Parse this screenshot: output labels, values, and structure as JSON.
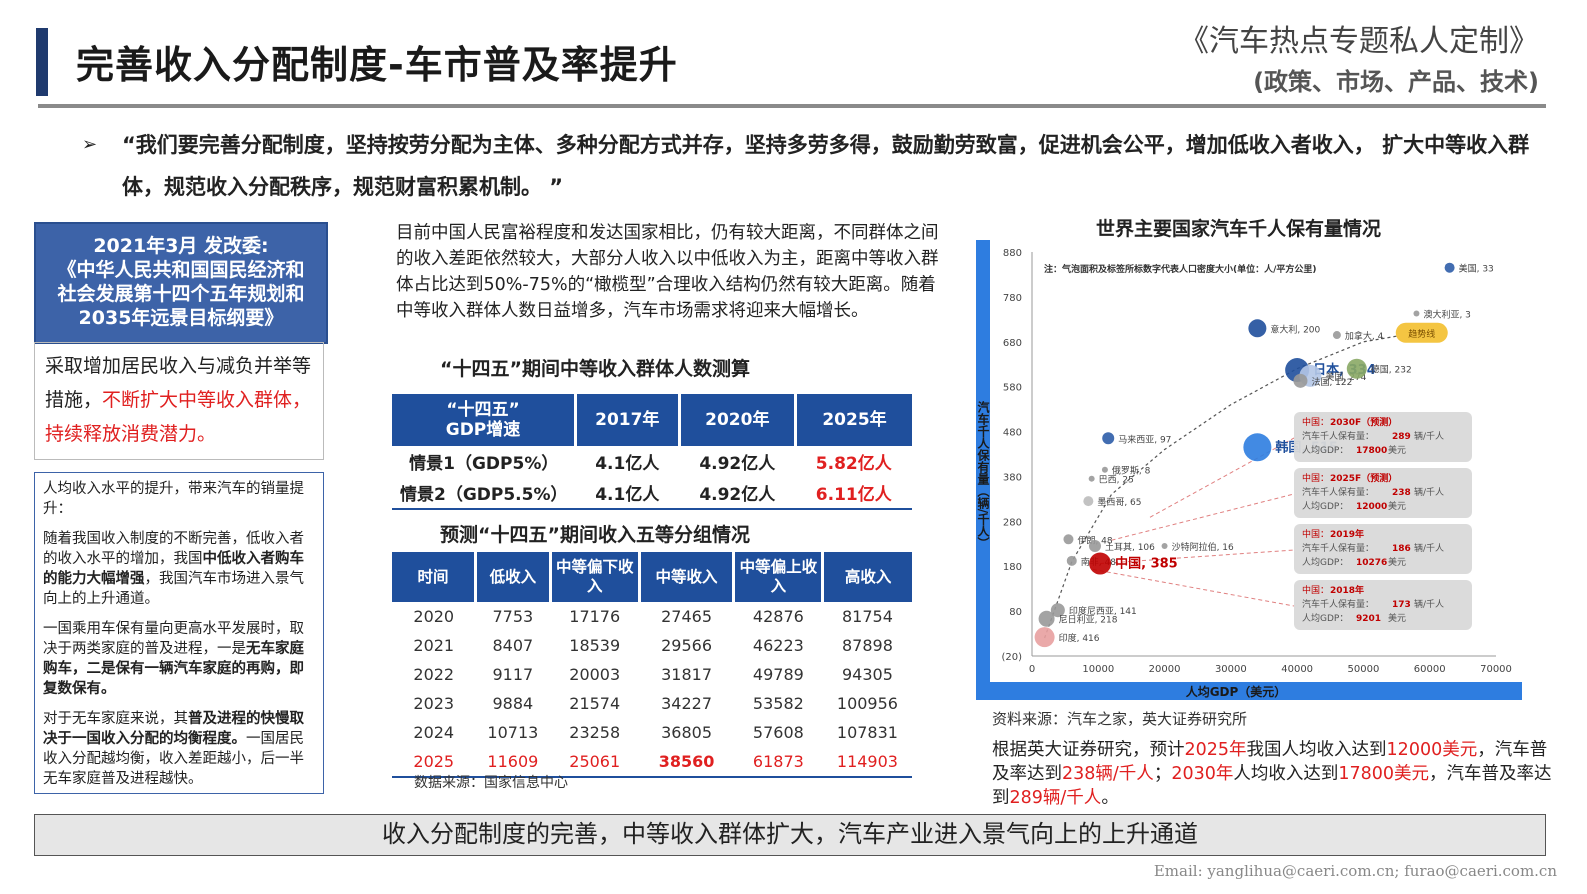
{
  "header": {
    "title": "完善收入分配制度-车市普及率提升",
    "brand_line1": "《汽车热点专题私人定制》",
    "brand_line2": "(政策、市场、产品、技术)"
  },
  "quote": {
    "bullet": "➢",
    "text": "“我们要完善分配制度，坚持按劳分配为主体、多种分配方式并存，坚持多劳多得，鼓励勤劳致富，促进机会公平，增加低收入者收入， 扩大中等收入群体，规范收入分配秩序，规范财富积累机制。 ”"
  },
  "left": {
    "plan_box": {
      "line1": "2021年3月  发改委:",
      "line2": "《中华人民共和国国民经济和",
      "line3": "社会发展第十四个五年规划和",
      "line4": "2035年远景目标纲要》"
    },
    "measures": {
      "text_normal": "采取增加居民收入与减负并举等措施，",
      "text_red": "不断扩大中等收入群体，持续释放消费潜力。"
    },
    "income_box": {
      "p1": "人均收入水平的提升，带来汽车的销量提升：",
      "p2_a": "随着我国收入制度的不断完善，低收入者的收入水平的增加，我国",
      "p2_b": "中低收入者购车的能力大幅增强",
      "p2_c": "，我国汽车市场进入景气向上的上升通道。",
      "p3_a": "一国乘用车保有量向更高水平发展时，取决于两类家庭的普及进程，一是",
      "p3_b": "无车家庭购车，二是保有一辆汽车家庭的再购，即复数保有。",
      "p4_a": "对于无车家庭来说，其",
      "p4_b": "普及进程的快慢取决于一国收入分配的均衡程度。",
      "p4_c": "一国居民收入分配越均衡，收入差距越小，后一半无车家庭普及进程越快。"
    }
  },
  "middle": {
    "desc": "目前中国人民富裕程度和发达国家相比，仍有较大距离，不同群体之间的收入差距依然较大，大部分人收入以中低收入为主，距离中等收入群体占比达到50%-75%的“橄榄型”合理收入结构仍然有较大距离。随着中等收入群体人数日益增多，汽车市场需求将迎来大幅增长。",
    "table1": {
      "title": "“十四五”期间中等收入群体人数测算",
      "headers": [
        "“十四五”\nGDP增速",
        "2017年",
        "2020年",
        "2025年"
      ],
      "rows": [
        [
          "情景1（GDP5%）",
          "4.1亿人",
          "4.92亿人",
          "5.82亿人"
        ],
        [
          "情景2（GDP5.5%）",
          "4.1亿人",
          "4.92亿人",
          "6.11亿人"
        ]
      ]
    },
    "table2": {
      "title": "预测“十四五”期间收入五等分组情况",
      "headers": [
        "时间",
        "低收入",
        "中等偏下收入",
        "中等收入",
        "中等偏上收入",
        "高收入"
      ],
      "rows": [
        [
          "2020",
          "7753",
          "17176",
          "27465",
          "42876",
          "81754"
        ],
        [
          "2021",
          "8407",
          "18539",
          "29566",
          "46223",
          "87898"
        ],
        [
          "2022",
          "9117",
          "20003",
          "31817",
          "49789",
          "94305"
        ],
        [
          "2023",
          "9884",
          "21574",
          "34227",
          "53582",
          "100956"
        ],
        [
          "2024",
          "10713",
          "23258",
          "36805",
          "57608",
          "107831"
        ],
        [
          "2025",
          "11609",
          "25061",
          "38560",
          "61873",
          "114903"
        ]
      ]
    },
    "source": "数据来源：国家信息中心"
  },
  "chart_data": {
    "type": "scatter",
    "title": "世界主要国家汽车千人保有量情况",
    "xlabel": "人均GDP（美元）",
    "ylabel": "汽车千人保有量（辆/千人）",
    "note": "注：气泡面积及标签所标数字代表人口密度大小(单位：人/平方公里)",
    "xlim": [
      0,
      70000
    ],
    "ylim": [
      -20,
      880
    ],
    "xticks": [
      "0",
      "10000",
      "20000",
      "30000",
      "40000",
      "50000",
      "60000",
      "70000"
    ],
    "yticks": [
      "(20)",
      "80",
      "180",
      "280",
      "380",
      "480",
      "580",
      "680",
      "780",
      "880"
    ],
    "points": [
      {
        "label": "美国, 33",
        "x": 63000,
        "y": 845,
        "size": 5,
        "color": "#2e5da8"
      },
      {
        "label": "澳大利亚, 3",
        "x": 58000,
        "y": 743,
        "size": 3,
        "color": "#999999"
      },
      {
        "label": "加拿大, 4",
        "x": 46000,
        "y": 695,
        "size": 4,
        "color": "#999999"
      },
      {
        "label": "意大利, 200",
        "x": 34000,
        "y": 710,
        "size": 9,
        "color": "#1f4f9c"
      },
      {
        "label": "日本, 334",
        "x": 40000,
        "y": 617,
        "size": 12,
        "color": "#1f4f9c"
      },
      {
        "label": "美国, 274",
        "x": 42000,
        "y": 604,
        "size": 11,
        "color": "#b4c7e7"
      },
      {
        "label": "德国, 232",
        "x": 49000,
        "y": 620,
        "size": 10,
        "color": "#8aa865"
      },
      {
        "label": "法国, 122",
        "x": 40500,
        "y": 593,
        "size": 7,
        "color": "#999999"
      },
      {
        "label": "韩国, 515",
        "x": 34000,
        "y": 445,
        "size": 14,
        "color": "#2e7de0"
      },
      {
        "label": "马来西亚, 97",
        "x": 11500,
        "y": 465,
        "size": 6,
        "color": "#2e5da8"
      },
      {
        "label": "俄罗斯, 8",
        "x": 11000,
        "y": 395,
        "size": 3,
        "color": "#999999"
      },
      {
        "label": "巴西, 25",
        "x": 9000,
        "y": 375,
        "size": 3,
        "color": "#999999"
      },
      {
        "label": "墨西哥, 65",
        "x": 8500,
        "y": 325,
        "size": 5,
        "color": "#bbbbbb"
      },
      {
        "label": "伊朗, 48",
        "x": 5500,
        "y": 240,
        "size": 5,
        "color": "#999999"
      },
      {
        "label": "土耳其, 106",
        "x": 9500,
        "y": 225,
        "size": 6,
        "color": "#999999"
      },
      {
        "label": "沙特阿拉伯, 16",
        "x": 20000,
        "y": 225,
        "size": 3,
        "color": "#999999"
      },
      {
        "label": "南非, 48",
        "x": 6000,
        "y": 192,
        "size": 5,
        "color": "#999999"
      },
      {
        "label": "中国, 385",
        "x": 10276,
        "y": 186,
        "size": 11,
        "color": "#c00000"
      },
      {
        "label": "印度尼西亚, 141",
        "x": 3900,
        "y": 82,
        "size": 7,
        "color": "#999999"
      },
      {
        "label": "尼日利亚, 218",
        "x": 2200,
        "y": 63,
        "size": 8,
        "color": "#999999"
      },
      {
        "label": "印度, 416",
        "x": 1900,
        "y": 22,
        "size": 10,
        "color": "#e8a0a0"
      }
    ],
    "highlight": {
      "label": "趋势线",
      "x": 58500,
      "y": 700
    },
    "china_callouts": [
      {
        "year": "2030F（预测）",
        "ownership": "289",
        "gdp": "17800",
        "x": 17800,
        "y": 289
      },
      {
        "year": "2025F（预测）",
        "ownership": "238",
        "gdp": "12000",
        "x": 12000,
        "y": 238
      },
      {
        "year": "2019年",
        "ownership": "186",
        "gdp": "10276",
        "x": 10276,
        "y": 186
      },
      {
        "year": "2018年",
        "ownership": "173",
        "gdp": "9201",
        "x": 9201,
        "y": 173
      }
    ],
    "callout_labels": {
      "country": "中国：",
      "own_pre": "汽车千人保有量：",
      "own_unit": "辆/千人",
      "gdp_pre": "人均GDP：",
      "gdp_unit": "美元"
    }
  },
  "right": {
    "source": "资料来源：汽车之家，英大证券研究所",
    "note_parts": [
      {
        "t": "根据英大证券研究，预计",
        "red": false
      },
      {
        "t": "2025年",
        "red": true
      },
      {
        "t": "我国人均收入达到",
        "red": false
      },
      {
        "t": "12000美元",
        "red": true
      },
      {
        "t": "，汽车普及率达到",
        "red": false
      },
      {
        "t": "238辆/千人",
        "red": true
      },
      {
        "t": "；",
        "red": false
      },
      {
        "t": "2030年",
        "red": true
      },
      {
        "t": "人均收入达到",
        "red": false
      },
      {
        "t": "17800美元",
        "red": true
      },
      {
        "t": "，汽车普及率达到",
        "red": false
      },
      {
        "t": "289辆/千人",
        "red": true
      },
      {
        "t": "。",
        "red": false
      }
    ]
  },
  "footer": {
    "banner": "收入分配制度的完善，中等收入群体扩大，汽车产业进入景气向上的上升通道",
    "email": "Email: yanglihua@caeri.com.cn; furao@caeri.com.cn"
  },
  "colors": {
    "primary_blue": "#1f4f9c",
    "accent_red": "#e02020",
    "chart_frame": "#2e7de0"
  }
}
